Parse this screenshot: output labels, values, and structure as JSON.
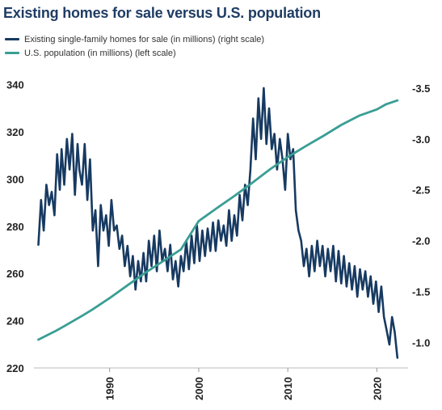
{
  "chart_data": {
    "type": "line",
    "title": "Existing homes for sale versus U.S. population",
    "xlabel": "",
    "ylabel": "",
    "xlim": [
      1981.5,
      2023.5
    ],
    "ylim_left": [
      220,
      345
    ],
    "ylim_right": [
      -0.75,
      -3.65
    ],
    "left_ticks": [
      340,
      320,
      300,
      280,
      260,
      240,
      220
    ],
    "right_ticks": [
      -3.5,
      -3.0,
      -2.5,
      -2.0,
      -1.5,
      -1.0
    ],
    "x_ticks": [
      1990,
      2000,
      2010,
      2020
    ],
    "legend_position": "top-left",
    "grid": false,
    "series": [
      {
        "name": "Existing single-family homes for sale (in millions) (right scale)",
        "axis": "right",
        "color": "#173a61",
        "x": [
          1982.0,
          1982.3,
          1982.6,
          1982.9,
          1983.2,
          1983.5,
          1983.8,
          1984.1,
          1984.4,
          1984.6,
          1984.9,
          1985.2,
          1985.5,
          1985.8,
          1986.1,
          1986.4,
          1986.6,
          1986.9,
          1987.2,
          1987.5,
          1987.8,
          1988.1,
          1988.4,
          1988.7,
          1989.0,
          1989.3,
          1989.6,
          1989.9,
          1990.2,
          1990.5,
          1990.8,
          1991.1,
          1991.4,
          1991.7,
          1992.0,
          1992.3,
          1992.6,
          1992.9,
          1993.2,
          1993.5,
          1993.8,
          1994.1,
          1994.4,
          1994.7,
          1995.0,
          1995.3,
          1995.6,
          1995.9,
          1996.2,
          1996.5,
          1996.8,
          1997.1,
          1997.4,
          1997.7,
          1998.0,
          1998.3,
          1998.6,
          1998.9,
          1999.2,
          1999.5,
          1999.8,
          2000.1,
          2000.4,
          2000.7,
          2001.0,
          2001.3,
          2001.6,
          2001.9,
          2002.2,
          2002.5,
          2002.8,
          2003.1,
          2003.4,
          2003.7,
          2004.0,
          2004.3,
          2004.6,
          2004.9,
          2005.2,
          2005.5,
          2005.8,
          2006.1,
          2006.4,
          2006.7,
          2007.0,
          2007.3,
          2007.6,
          2007.9,
          2008.2,
          2008.5,
          2008.8,
          2009.1,
          2009.4,
          2009.7,
          2010.0,
          2010.3,
          2010.6,
          2010.9,
          2011.2,
          2011.5,
          2011.8,
          2012.1,
          2012.4,
          2012.7,
          2013.0,
          2013.3,
          2013.6,
          2013.9,
          2014.2,
          2014.5,
          2014.8,
          2015.1,
          2015.4,
          2015.7,
          2016.0,
          2016.3,
          2016.6,
          2016.9,
          2017.2,
          2017.5,
          2017.8,
          2018.1,
          2018.4,
          2018.7,
          2019.0,
          2019.3,
          2019.6,
          2019.9,
          2020.2,
          2020.5,
          2020.8,
          2021.1,
          2021.4,
          2021.7,
          2022.0,
          2022.3
        ],
        "values": [
          -1.96,
          -2.4,
          -2.1,
          -2.55,
          -2.35,
          -2.48,
          -2.25,
          -2.85,
          -2.5,
          -2.9,
          -2.55,
          -3.0,
          -2.7,
          -3.05,
          -2.45,
          -2.95,
          -2.7,
          -2.55,
          -2.95,
          -2.4,
          -2.8,
          -2.1,
          -2.3,
          -1.75,
          -2.35,
          -2.1,
          -2.25,
          -1.95,
          -2.4,
          -2.1,
          -2.15,
          -1.92,
          -2.05,
          -1.75,
          -1.95,
          -1.65,
          -1.85,
          -1.52,
          -1.8,
          -1.6,
          -1.88,
          -1.6,
          -2.0,
          -1.75,
          -2.05,
          -1.7,
          -2.1,
          -1.8,
          -1.92,
          -1.7,
          -1.96,
          -1.62,
          -1.8,
          -1.55,
          -1.85,
          -1.7,
          -2.0,
          -1.72,
          -2.05,
          -1.78,
          -2.15,
          -1.8,
          -2.1,
          -1.85,
          -2.12,
          -1.9,
          -2.18,
          -1.9,
          -2.2,
          -2.0,
          -2.15,
          -1.95,
          -2.3,
          -2.0,
          -2.25,
          -2.05,
          -2.45,
          -2.2,
          -2.55,
          -2.35,
          -2.7,
          -3.2,
          -2.8,
          -3.4,
          -3.0,
          -3.5,
          -2.95,
          -3.3,
          -2.9,
          -3.05,
          -2.7,
          -3.0,
          -2.8,
          -2.5,
          -3.05,
          -2.8,
          -2.9,
          -2.3,
          -2.1,
          -2.0,
          -1.75,
          -1.92,
          -1.65,
          -1.95,
          -1.7,
          -2.0,
          -1.75,
          -1.95,
          -1.65,
          -1.92,
          -1.7,
          -1.95,
          -1.6,
          -1.9,
          -1.58,
          -1.85,
          -1.55,
          -1.78,
          -1.52,
          -1.75,
          -1.45,
          -1.72,
          -1.52,
          -1.7,
          -1.45,
          -1.65,
          -1.38,
          -1.6,
          -1.3,
          -1.55,
          -1.25,
          -1.12,
          -0.98,
          -1.25,
          -1.1,
          -0.85
        ]
      },
      {
        "name": "U.S. population (in millions) (left scale)",
        "axis": "left",
        "color": "#3a9e94",
        "x": [
          1982,
          1984,
          1985,
          1986,
          1987,
          1988,
          1990,
          1992,
          1994,
          1996,
          1998,
          2000,
          2002,
          2004,
          2006,
          2008,
          2010,
          2012,
          2014,
          2016,
          2018,
          2020,
          2021,
          2022.3
        ],
        "values": [
          232,
          235.8,
          237.9,
          240.1,
          242.3,
          244.6,
          249.6,
          255.0,
          260.3,
          265.2,
          270.2,
          282.2,
          287.6,
          292.8,
          298.4,
          304.1,
          309.3,
          313.9,
          318.3,
          322.9,
          326.8,
          329.5,
          331.6,
          333.3
        ]
      }
    ]
  }
}
